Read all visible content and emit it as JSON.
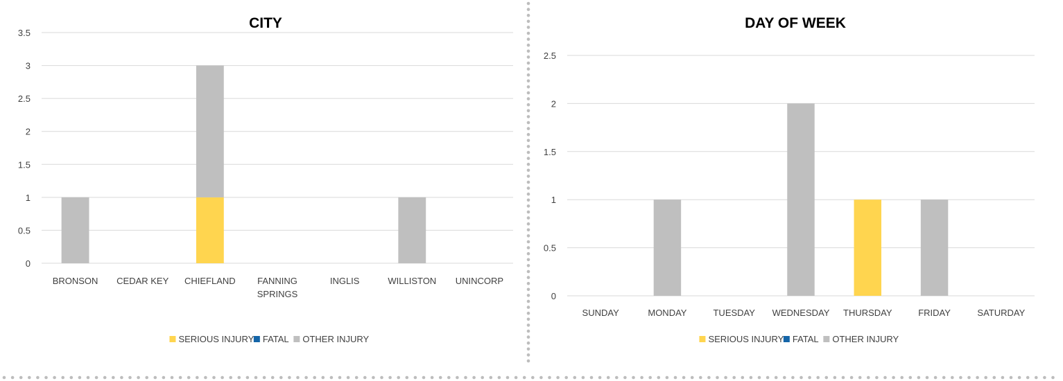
{
  "colors": {
    "serious_injury": "#FFD54F",
    "fatal": "#1565A8",
    "other_injury": "#BFBFBF",
    "grid": "#D9D9D9",
    "text": "#404040",
    "divider_dots": "#BDBDBD"
  },
  "chart_data": [
    {
      "type": "bar",
      "stacked": true,
      "title": "CITY",
      "categories": [
        "BRONSON",
        "CEDAR KEY",
        "CHIEFLAND",
        "FANNING SPRINGS",
        "INGLIS",
        "WILLISTON",
        "UNINCORP"
      ],
      "series": [
        {
          "name": "SERIOUS INJURY",
          "values": [
            0,
            0,
            1,
            0,
            0,
            0,
            0
          ]
        },
        {
          "name": "FATAL",
          "values": [
            0,
            0,
            0,
            0,
            0,
            0,
            0
          ]
        },
        {
          "name": "OTHER INJURY",
          "values": [
            1,
            0,
            2,
            0,
            0,
            1,
            0
          ]
        }
      ],
      "ylim": [
        0,
        3.5
      ],
      "yticks": [
        "0",
        "0.5",
        "1",
        "1.5",
        "2",
        "2.5",
        "3",
        "3.5"
      ],
      "grid": true,
      "legend": "bottom"
    },
    {
      "type": "bar",
      "stacked": true,
      "title": "DAY OF WEEK",
      "categories": [
        "SUNDAY",
        "MONDAY",
        "TUESDAY",
        "WEDNESDAY",
        "THURSDAY",
        "FRIDAY",
        "SATURDAY"
      ],
      "series": [
        {
          "name": "SERIOUS INJURY",
          "values": [
            0,
            0,
            0,
            0,
            1,
            0,
            0
          ]
        },
        {
          "name": "FATAL",
          "values": [
            0,
            0,
            0,
            0,
            0,
            0,
            0
          ]
        },
        {
          "name": "OTHER INJURY",
          "values": [
            0,
            1,
            0,
            2,
            0,
            1,
            0
          ]
        }
      ],
      "ylim": [
        0,
        2.5
      ],
      "yticks": [
        "0",
        "0.5",
        "1",
        "1.5",
        "2",
        "2.5"
      ],
      "grid": true,
      "legend": "bottom"
    }
  ]
}
